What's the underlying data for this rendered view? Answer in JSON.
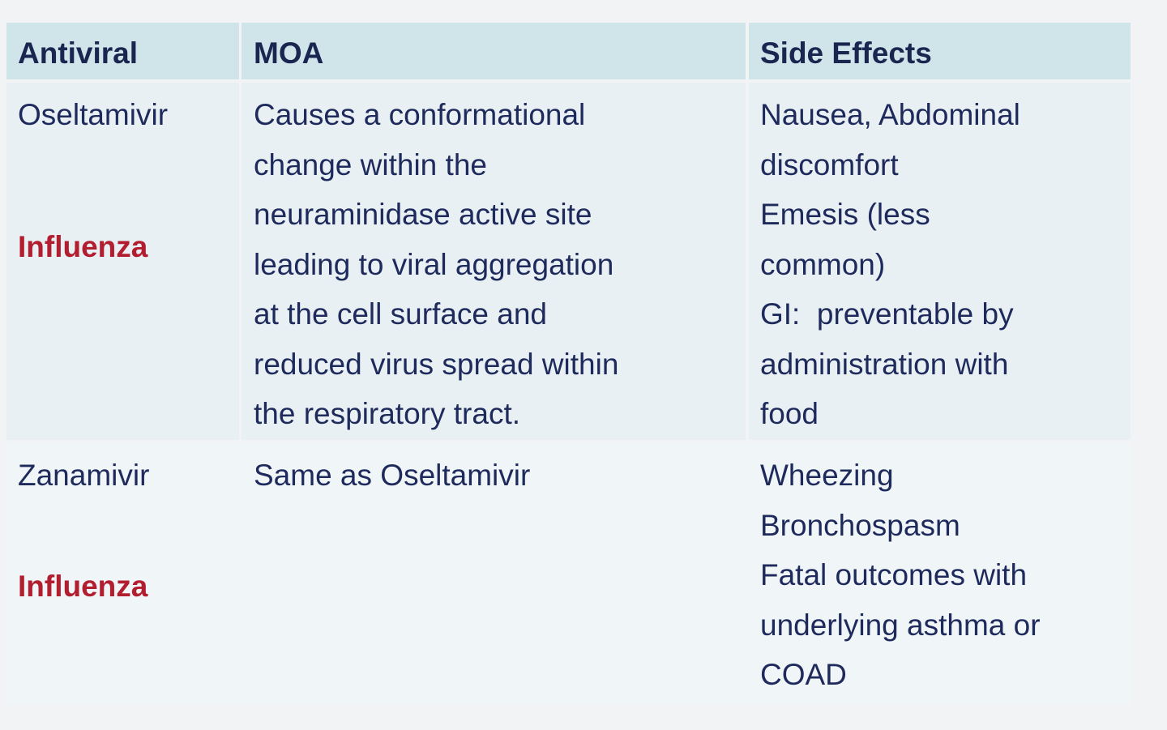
{
  "table": {
    "header": [
      "Antiviral",
      "MOA",
      "Side Effects"
    ],
    "rows": [
      {
        "drug": "Oseltamivir",
        "indication": "Influenza",
        "moa": [
          "Causes a conformational",
          "change within the",
          "neuraminidase active site",
          "leading to viral aggregation",
          "at the cell surface and",
          "reduced virus spread within",
          "the respiratory tract."
        ],
        "side_effects": [
          "Nausea, Abdominal",
          "discomfort",
          "Emesis (less",
          "common)",
          "GI:  preventable by",
          "administration with",
          "food"
        ]
      },
      {
        "drug": "Zanamivir",
        "indication": "Influenza",
        "moa": [
          "Same as Oseltamivir"
        ],
        "side_effects": [
          "Wheezing",
          "Bronchospasm",
          "Fatal outcomes with",
          "underlying asthma or",
          "COAD"
        ]
      }
    ]
  }
}
